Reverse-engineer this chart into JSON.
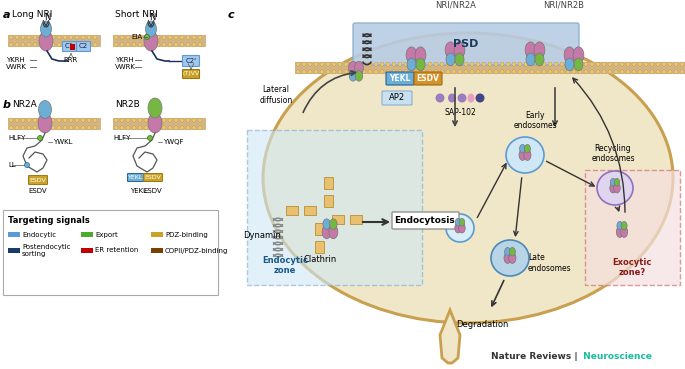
{
  "bg_color": "#ffffff",
  "panel_a_label": "a",
  "panel_b_label": "b",
  "panel_c_label": "c",
  "long_nri_label": "Long NRI",
  "short_nri_label": "Short NRI",
  "nr2a_label": "NR2A",
  "nr2b_label": "NR2B",
  "n_label": "N",
  "targeting_signals_title": "Targeting signals",
  "psd_label": "PSD",
  "yekl_label": "YEKL",
  "esdv_label": "ESDV",
  "ap2_label": "AP2",
  "sap102_label": "SAP-102",
  "lateral_diffusion_label": "Lateral\ndiffusion",
  "dynamin_label": "Dynamin",
  "clathrin_label": "Clathrin",
  "endocytosis_label": "Endocytosis",
  "endocytic_zone_label": "Endocytic\nzone",
  "early_endosomes_label": "Early\nendosomes",
  "late_endosomes_label": "Late\nendosomes",
  "degradation_label": "Degradation",
  "recycling_endosomes_label": "Recycling\nendosomes",
  "exocytic_zone_label": "Exocytic\nzone?",
  "nr1nr2a_label": "NRI/NR2A",
  "nr1nr2b_label": "NRI/NR2B",
  "nature_reviews": "Nature Reviews",
  "neuroscience": " Neuroscience",
  "membrane_color": "#d4b483",
  "cell_body_color": "#f0e6c8",
  "psd_color": "#b8cce4",
  "endocytic_zone_color": "#d0e8f5",
  "exocytic_zone_color": "#f5e0e0",
  "blue_receptor": "#6baed6",
  "pink_receptor": "#c479a8",
  "green_receptor": "#74b843",
  "purple_small": "#9b7cbf",
  "pink_small": "#e8a0c0",
  "dark_navy": "#1a2e5c",
  "teal_color": "#1abc9c",
  "legend_endocytic": "#5b9bd5",
  "legend_postendo": "#1a3a6e",
  "legend_export": "#4aab2e",
  "legend_er": "#c00000",
  "legend_pdz": "#c9a227",
  "legend_copii": "#7b3f00"
}
